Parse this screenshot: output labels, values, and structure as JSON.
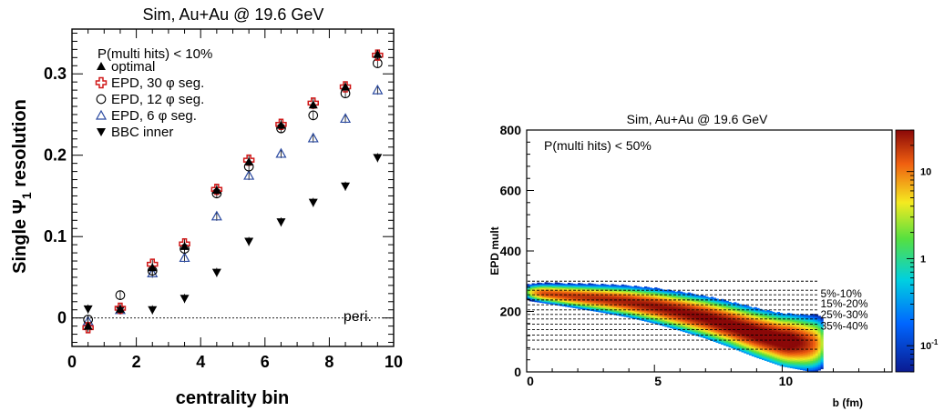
{
  "chart_data": [
    {
      "type": "scatter",
      "title": "Sim, Au+Au @ 19.6 GeV",
      "xlabel": "centrality bin",
      "ylabel_main": "Single  Ψ",
      "ylabel_sub": "1",
      "ylabel_tail": " resolution",
      "xlim": [
        0,
        10
      ],
      "ylim": [
        -0.035,
        0.355
      ],
      "xticks": [
        "0",
        "2",
        "4",
        "6",
        "8",
        "10"
      ],
      "yticks": [
        "0",
        "0.1",
        "0.2",
        "0.3"
      ],
      "legend_position": "top-left",
      "legend_header": "P(multi hits) < 10%",
      "annotation": "peri.",
      "reference_line_y": 0,
      "series": [
        {
          "name": "optimal",
          "marker": "triangle-up-filled",
          "x": [
            0.5,
            1.5,
            2.5,
            3.5,
            4.5,
            5.5,
            6.5,
            7.5,
            8.5,
            9.5
          ],
          "y": [
            -0.01,
            0.011,
            0.062,
            0.088,
            0.157,
            0.192,
            0.237,
            0.262,
            0.284,
            0.324
          ]
        },
        {
          "name": "EPD, 30 φ seg.",
          "marker": "cross-open-red",
          "x": [
            0.5,
            1.5,
            2.5,
            3.5,
            4.5,
            5.5,
            6.5,
            7.5,
            8.5,
            9.5
          ],
          "y": [
            -0.012,
            0.012,
            0.066,
            0.091,
            0.158,
            0.194,
            0.238,
            0.264,
            0.284,
            0.323
          ]
        },
        {
          "name": "EPD, 12 φ seg.",
          "marker": "circle-open",
          "x": [
            0.5,
            1.5,
            2.5,
            3.5,
            4.5,
            5.5,
            6.5,
            7.5,
            8.5,
            9.5
          ],
          "y": [
            -0.002,
            0.028,
            0.058,
            0.085,
            0.153,
            0.186,
            0.233,
            0.249,
            0.276,
            0.313
          ]
        },
        {
          "name": "EPD, 6 φ seg.",
          "marker": "triangle-up-open-blue",
          "x": [
            0.5,
            1.5,
            2.5,
            3.5,
            4.5,
            5.5,
            6.5,
            7.5,
            8.5,
            9.5
          ],
          "y": [
            -0.004,
            0.01,
            0.055,
            0.074,
            0.125,
            0.175,
            0.202,
            0.221,
            0.245,
            0.28
          ]
        },
        {
          "name": "BBC inner",
          "marker": "triangle-down-filled",
          "x": [
            0.5,
            1.5,
            2.5,
            3.5,
            4.5,
            5.5,
            6.5,
            7.5,
            8.5,
            9.5
          ],
          "y": [
            0.011,
            0.01,
            0.01,
            0.024,
            0.056,
            0.094,
            0.118,
            0.142,
            0.162,
            0.197
          ]
        }
      ]
    },
    {
      "type": "heatmap",
      "title": "Sim, Au+Au @ 19.6 GeV",
      "xlabel": "b (fm)",
      "ylabel": "EPD mult",
      "xlim": [
        0,
        14.3
      ],
      "ylim": [
        0,
        800
      ],
      "xticks": [
        "0",
        "5",
        "10"
      ],
      "yticks": [
        "0",
        "200",
        "400",
        "600",
        "800"
      ],
      "annotation": "P(multi hits) < 50%",
      "color_scale": "log",
      "color_range": [
        0.05,
        30
      ],
      "colorbar_ticks": [
        "10",
        "1",
        "10"
      ],
      "colorbar_tick_superscripts": [
        "",
        "",
        "-1"
      ],
      "band_ridge": {
        "b": [
          0,
          1,
          2,
          3,
          4,
          5,
          6,
          7,
          8,
          9,
          10,
          11
        ],
        "mult": [
          265,
          258,
          250,
          242,
          232,
          218,
          200,
          180,
          155,
          128,
          105,
          95
        ]
      },
      "centrality_cut_mult": [
        300,
        270,
        255,
        238,
        222,
        205,
        190,
        175,
        158,
        140,
        122,
        105,
        75
      ],
      "centrality_labels": [
        "5%-10%",
        "15%-20%",
        "25%-30%",
        "35%-40%"
      ]
    }
  ]
}
